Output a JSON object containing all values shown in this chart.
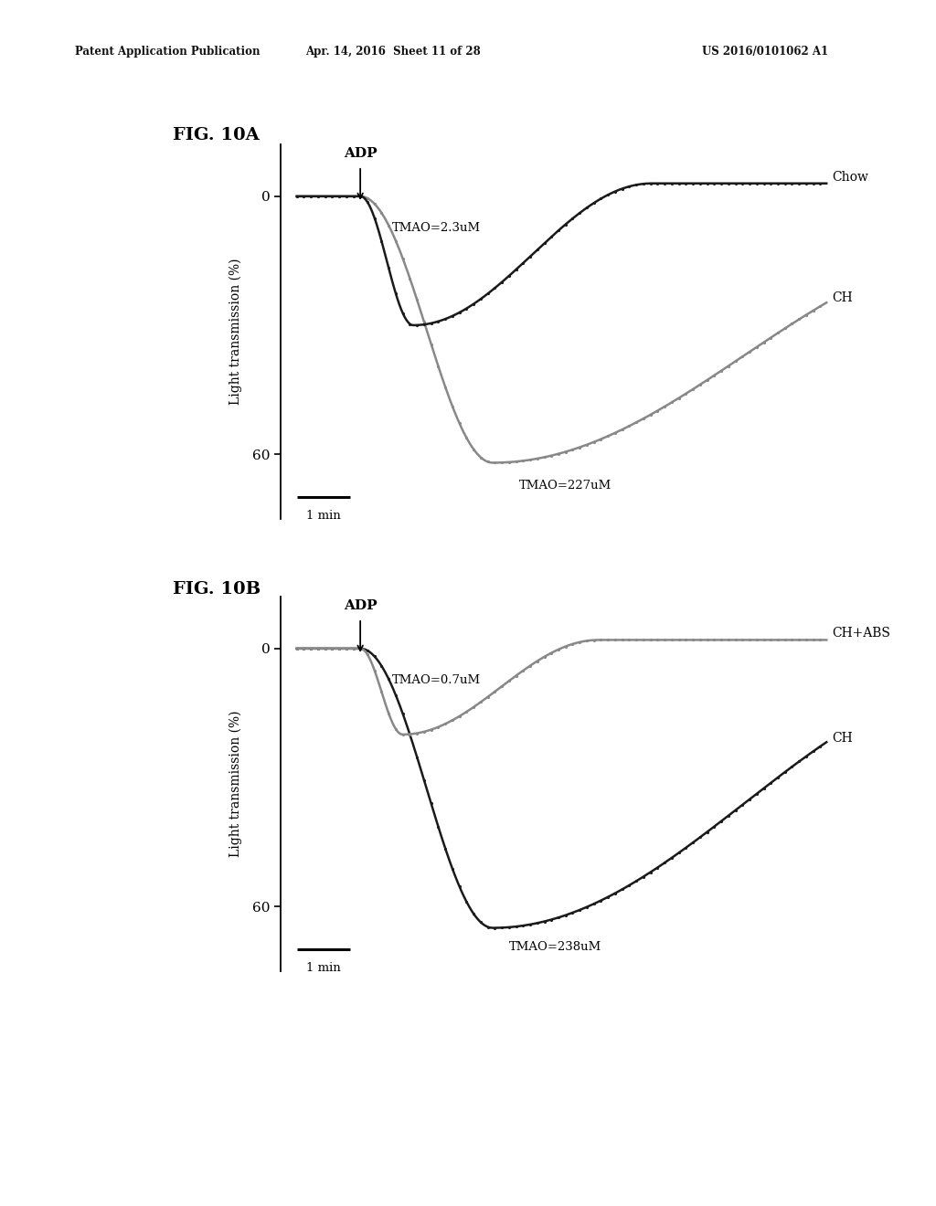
{
  "fig_title_A": "FIG. 10A",
  "fig_title_B": "FIG. 10B",
  "header_left": "Patent Application Publication",
  "header_mid": "Apr. 14, 2016  Sheet 11 of 28",
  "header_right": "US 2016/0101062 A1",
  "ylabel": "Light transmission (%)",
  "adp_label": "ADP",
  "scale_label": "1 min",
  "figA": {
    "chow_tmao_label": "TMAO=2.3uM",
    "chow_label": "Chow",
    "ch_label": "CH",
    "ch_tmao_label": "TMAO=227uM"
  },
  "figB": {
    "chplus_tmao_label": "TMAO=0.7uM",
    "chplus_label": "CH+ABS",
    "ch_label": "CH",
    "ch_tmao_label": "TMAO=238uM"
  },
  "background_color": "#ffffff",
  "line_color_dark": "#1a1a1a",
  "line_color_gray": "#888888",
  "text_color": "#111111"
}
